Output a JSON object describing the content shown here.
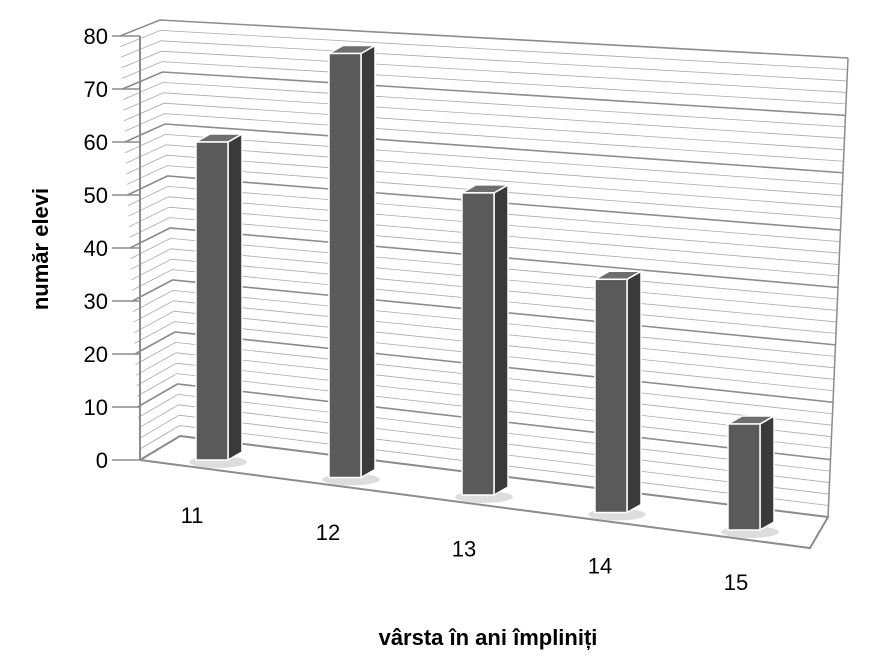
{
  "chart_data": {
    "type": "bar",
    "categories": [
      "11",
      "12",
      "13",
      "14",
      "15"
    ],
    "values": [
      60,
      80,
      57,
      44,
      20
    ],
    "xlabel": "vârsta în ani împliniți",
    "ylabel": "număr elevi",
    "ylim": [
      0,
      80
    ],
    "yticks": [
      0,
      10,
      20,
      30,
      40,
      50,
      60,
      70,
      80
    ],
    "grid": true,
    "colors": {
      "bar": "#5a5a5a",
      "bar_side": "#3a3a3a",
      "bar_top": "#6e6e6e",
      "grid": "#8c8c8c",
      "axis": "#8c8c8c"
    }
  }
}
